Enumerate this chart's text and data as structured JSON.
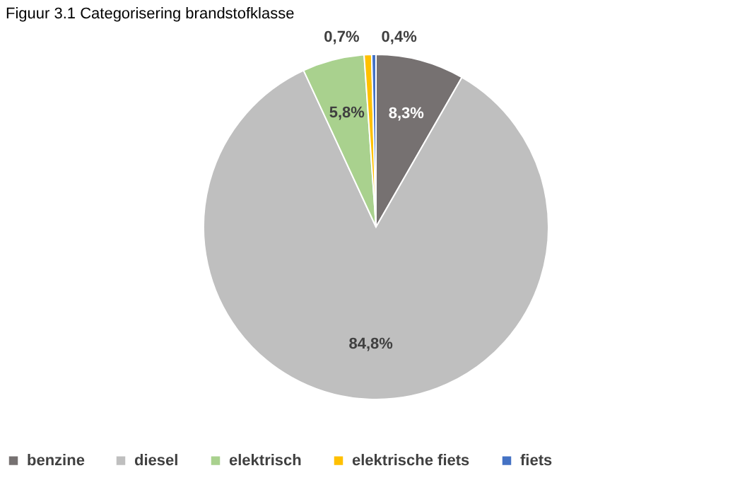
{
  "chart_data": {
    "type": "pie",
    "title": "Figuur 3.1 Categorisering brandstofklasse",
    "categories": [
      "benzine",
      "diesel",
      "elektrisch",
      "elektrische fiets",
      "fiets"
    ],
    "values": [
      8.3,
      84.8,
      5.8,
      0.7,
      0.4
    ],
    "colors": [
      "#767171",
      "#bfbfbf",
      "#a9d18e",
      "#ffc000",
      "#4472c4"
    ],
    "value_labels": [
      "8,3%",
      "84,8%",
      "5,8%",
      "0,7%",
      "0,4%"
    ],
    "legend": "bottom"
  }
}
